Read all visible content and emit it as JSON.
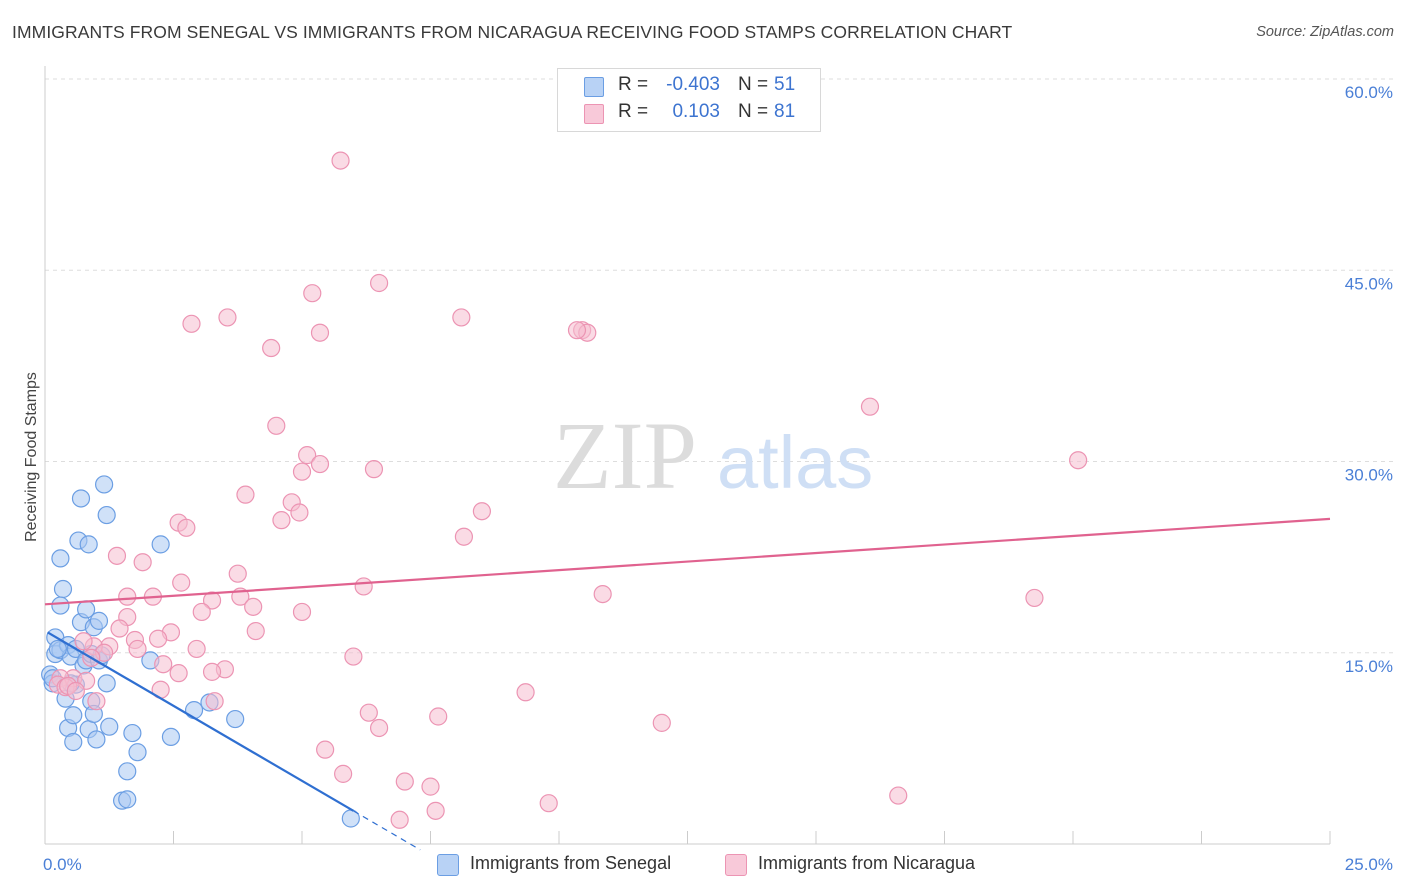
{
  "title": "IMMIGRANTS FROM SENEGAL VS IMMIGRANTS FROM NICARAGUA RECEIVING FOOD STAMPS CORRELATION CHART",
  "source": "Source: ZipAtlas.com",
  "watermark": {
    "zip": "ZIP",
    "atlas": "atlas"
  },
  "colors": {
    "senegal_fill": "#a9c8f3",
    "senegal_stroke": "#6b9ee3",
    "senegal_line": "#2f6fd1",
    "nicaragua_fill": "#f6bdd0",
    "nicaragua_stroke": "#ec94b3",
    "nicaragua_line": "#e0628f",
    "tick_text": "#4a7fd6",
    "grid": "#dddddd"
  },
  "legend_top": {
    "rows": [
      {
        "r_label": "R =",
        "r_value": "-0.403",
        "n_label": "N =",
        "n_value": "51",
        "series": "senegal"
      },
      {
        "r_label": "R =",
        "r_value": "0.103",
        "n_label": "N =",
        "n_value": "81",
        "series": "nicaragua"
      }
    ]
  },
  "legend_bottom": [
    {
      "label": "Immigrants from Senegal",
      "series": "senegal"
    },
    {
      "label": "Immigrants from Nicaragua",
      "series": "nicaragua"
    }
  ],
  "chart_data": {
    "type": "scatter",
    "title": "IMMIGRANTS FROM SENEGAL VS IMMIGRANTS FROM NICARAGUA RECEIVING FOOD STAMPS CORRELATION CHART",
    "xlabel": "",
    "ylabel": "Receiving Food Stamps",
    "xlim": [
      0,
      25
    ],
    "ylim": [
      0,
      60
    ],
    "x_tick_labels": [
      {
        "value": 0,
        "label": "0.0%"
      },
      {
        "value": 25,
        "label": "25.0%"
      }
    ],
    "y_tick_labels": [
      {
        "value": 15,
        "label": "15.0%"
      },
      {
        "value": 30,
        "label": "30.0%"
      },
      {
        "value": 45,
        "label": "45.0%"
      },
      {
        "value": 60,
        "label": "60.0%"
      }
    ],
    "y_gridlines": [
      15,
      30,
      45,
      60
    ],
    "x_minor_ticks": [
      0,
      2.5,
      5,
      7.5,
      10,
      12.5,
      15,
      17.5,
      20,
      22.5,
      25
    ],
    "series": [
      {
        "name": "Immigrants from Senegal",
        "key": "senegal",
        "r": -0.403,
        "n": 51,
        "trend": {
          "x0": 0.05,
          "y0": 16.6,
          "x1": 6.0,
          "y1": 2.6,
          "dash_to_x": 7.3
        },
        "points": [
          [
            0.1,
            13.3
          ],
          [
            0.15,
            12.6
          ],
          [
            0.2,
            14.9
          ],
          [
            0.2,
            16.2
          ],
          [
            0.3,
            15.2
          ],
          [
            0.35,
            20.0
          ],
          [
            0.3,
            18.7
          ],
          [
            0.3,
            22.4
          ],
          [
            0.45,
            15.6
          ],
          [
            0.5,
            14.7
          ],
          [
            0.4,
            11.4
          ],
          [
            0.45,
            9.1
          ],
          [
            0.55,
            10.1
          ],
          [
            0.6,
            12.5
          ],
          [
            0.55,
            8.0
          ],
          [
            0.6,
            15.3
          ],
          [
            0.65,
            23.8
          ],
          [
            0.7,
            17.4
          ],
          [
            0.7,
            27.1
          ],
          [
            0.75,
            14.0
          ],
          [
            0.8,
            18.4
          ],
          [
            0.8,
            14.4
          ],
          [
            0.85,
            23.5
          ],
          [
            0.9,
            11.2
          ],
          [
            0.85,
            9.0
          ],
          [
            0.9,
            14.9
          ],
          [
            0.95,
            10.2
          ],
          [
            0.95,
            17.0
          ],
          [
            1.0,
            8.2
          ],
          [
            1.05,
            17.5
          ],
          [
            1.05,
            14.4
          ],
          [
            1.1,
            14.8
          ],
          [
            1.15,
            28.2
          ],
          [
            1.2,
            25.8
          ],
          [
            1.2,
            12.6
          ],
          [
            1.25,
            9.2
          ],
          [
            1.7,
            8.7
          ],
          [
            1.6,
            5.7
          ],
          [
            1.5,
            3.4
          ],
          [
            1.6,
            3.5
          ],
          [
            1.8,
            7.2
          ],
          [
            2.05,
            14.4
          ],
          [
            2.25,
            23.5
          ],
          [
            2.45,
            8.4
          ],
          [
            2.9,
            10.5
          ],
          [
            3.2,
            11.1
          ],
          [
            3.7,
            9.8
          ],
          [
            5.95,
            2.0
          ],
          [
            0.25,
            15.3
          ],
          [
            0.15,
            13.0
          ],
          [
            0.5,
            12.6
          ]
        ]
      },
      {
        "name": "Immigrants from Nicaragua",
        "key": "nicaragua",
        "r": 0.103,
        "n": 81,
        "trend": {
          "x0": 0,
          "y0": 18.8,
          "x1": 25.0,
          "y1": 25.5
        },
        "points": [
          [
            5.75,
            53.6
          ],
          [
            6.5,
            44.0
          ],
          [
            5.2,
            43.2
          ],
          [
            3.55,
            41.3
          ],
          [
            2.85,
            40.8
          ],
          [
            5.35,
            40.1
          ],
          [
            10.45,
            40.3
          ],
          [
            10.55,
            40.1
          ],
          [
            10.35,
            40.3
          ],
          [
            4.4,
            38.9
          ],
          [
            8.1,
            41.3
          ],
          [
            16.05,
            34.3
          ],
          [
            4.5,
            32.8
          ],
          [
            5.1,
            30.5
          ],
          [
            5.35,
            29.8
          ],
          [
            20.1,
            30.1
          ],
          [
            6.4,
            29.4
          ],
          [
            5.0,
            29.2
          ],
          [
            3.9,
            27.4
          ],
          [
            4.8,
            26.8
          ],
          [
            4.95,
            26.0
          ],
          [
            4.6,
            25.4
          ],
          [
            8.5,
            26.1
          ],
          [
            2.6,
            25.2
          ],
          [
            2.75,
            24.8
          ],
          [
            8.15,
            24.1
          ],
          [
            1.4,
            22.6
          ],
          [
            1.9,
            22.1
          ],
          [
            3.75,
            21.2
          ],
          [
            6.2,
            20.2
          ],
          [
            2.65,
            20.5
          ],
          [
            3.25,
            19.1
          ],
          [
            3.8,
            19.4
          ],
          [
            4.05,
            18.6
          ],
          [
            1.6,
            19.4
          ],
          [
            2.1,
            19.4
          ],
          [
            5.0,
            18.2
          ],
          [
            10.85,
            19.6
          ],
          [
            19.25,
            19.3
          ],
          [
            3.05,
            18.2
          ],
          [
            1.6,
            17.8
          ],
          [
            1.45,
            16.9
          ],
          [
            2.45,
            16.6
          ],
          [
            2.2,
            16.1
          ],
          [
            1.75,
            16.0
          ],
          [
            4.1,
            16.7
          ],
          [
            1.25,
            15.5
          ],
          [
            1.8,
            15.3
          ],
          [
            2.95,
            15.3
          ],
          [
            0.95,
            15.5
          ],
          [
            0.75,
            15.9
          ],
          [
            6.0,
            14.7
          ],
          [
            1.15,
            15.0
          ],
          [
            0.9,
            14.6
          ],
          [
            2.3,
            14.1
          ],
          [
            3.5,
            13.7
          ],
          [
            3.25,
            13.5
          ],
          [
            2.6,
            13.4
          ],
          [
            0.55,
            13.0
          ],
          [
            0.8,
            12.8
          ],
          [
            0.3,
            13.0
          ],
          [
            0.25,
            12.5
          ],
          [
            0.4,
            12.3
          ],
          [
            0.45,
            12.4
          ],
          [
            0.6,
            12.0
          ],
          [
            2.25,
            12.1
          ],
          [
            9.35,
            11.9
          ],
          [
            1.0,
            11.2
          ],
          [
            3.3,
            11.2
          ],
          [
            6.3,
            10.3
          ],
          [
            7.65,
            10.0
          ],
          [
            12.0,
            9.5
          ],
          [
            6.5,
            9.1
          ],
          [
            5.45,
            7.4
          ],
          [
            5.8,
            5.5
          ],
          [
            7.0,
            4.9
          ],
          [
            7.5,
            4.5
          ],
          [
            16.6,
            3.8
          ],
          [
            9.8,
            3.2
          ],
          [
            7.6,
            2.6
          ],
          [
            6.9,
            1.9
          ]
        ]
      }
    ]
  }
}
